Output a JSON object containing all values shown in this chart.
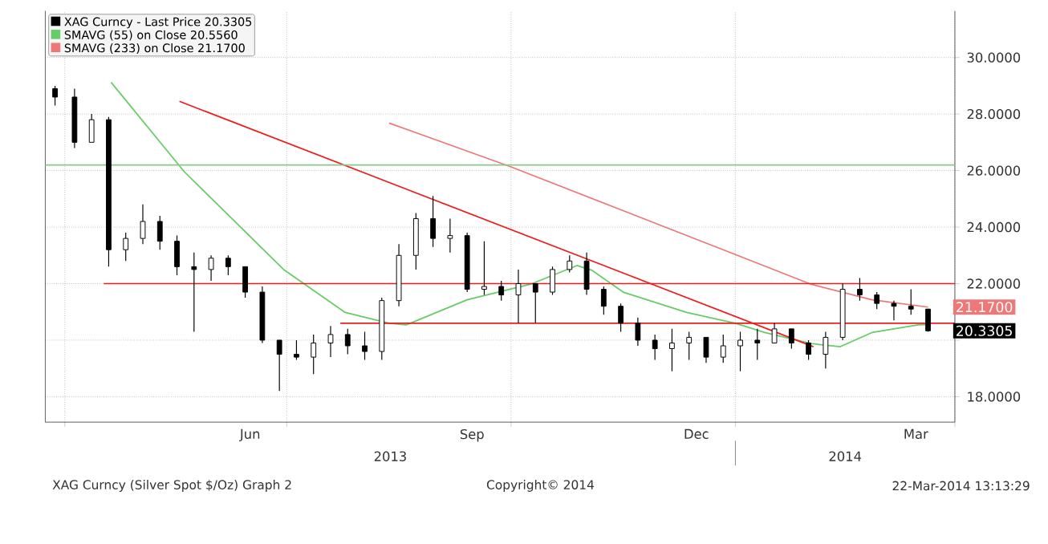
{
  "chart_data": {
    "type": "candlestick",
    "xlim": [
      "2013-03-24",
      "2014-04-01"
    ],
    "ylim": [
      17.1,
      31.65
    ],
    "xticks": [
      {
        "value": "2013-04-01",
        "label": null
      },
      {
        "value": "2013-06-16",
        "label": "Jun"
      },
      {
        "value": "2013-07-01",
        "label": null
      },
      {
        "value": "2013-09-15",
        "label": "Sep"
      },
      {
        "value": "2013-10-01",
        "label": null
      },
      {
        "value": "2013-12-16",
        "label": "Dec"
      },
      {
        "value": "2014-01-01",
        "label": null
      },
      {
        "value": "2014-03-16",
        "label": "Mar"
      },
      {
        "value": "2014-04-01",
        "label": null
      }
    ],
    "yticks": [
      {
        "value": 18,
        "label": "18.0000"
      },
      {
        "value": 20,
        "label": null
      },
      {
        "value": 22,
        "label": "22.0000"
      },
      {
        "value": 24,
        "label": "24.0000"
      },
      {
        "value": 26,
        "label": "26.0000"
      },
      {
        "value": 28,
        "label": "28.0000"
      },
      {
        "value": 30,
        "label": "30.0000"
      }
    ],
    "grid": true,
    "legend": "top left",
    "series": [
      {
        "name": "XAG Curncy - Last Price 20.3305",
        "type": "candlestick",
        "color": "#000000",
        "x": [
          "2013-03-28",
          "2013-04-05",
          "2013-04-12",
          "2013-04-19",
          "2013-04-26",
          "2013-05-03",
          "2013-05-10",
          "2013-05-17",
          "2013-05-24",
          "2013-05-31",
          "2013-06-07",
          "2013-06-14",
          "2013-06-21",
          "2013-06-28",
          "2013-07-05",
          "2013-07-12",
          "2013-07-19",
          "2013-07-26",
          "2013-08-02",
          "2013-08-09",
          "2013-08-16",
          "2013-08-23",
          "2013-08-30",
          "2013-09-06",
          "2013-09-13",
          "2013-09-20",
          "2013-09-27",
          "2013-10-04",
          "2013-10-11",
          "2013-10-18",
          "2013-10-25",
          "2013-11-01",
          "2013-11-08",
          "2013-11-15",
          "2013-11-22",
          "2013-11-29",
          "2013-12-06",
          "2013-12-13",
          "2013-12-20",
          "2013-12-27",
          "2014-01-03",
          "2014-01-10",
          "2014-01-17",
          "2014-01-24",
          "2014-01-31",
          "2014-02-07",
          "2014-02-14",
          "2014-02-21",
          "2014-02-28",
          "2014-03-07",
          "2014-03-14",
          "2014-03-21"
        ],
        "ohlc": [
          [
            28.9,
            29.0,
            28.3,
            28.6
          ],
          [
            28.6,
            28.9,
            26.8,
            27.0
          ],
          [
            27.0,
            28.0,
            27.0,
            27.8
          ],
          [
            27.8,
            27.9,
            22.6,
            23.2
          ],
          [
            23.2,
            23.8,
            22.8,
            23.6
          ],
          [
            23.6,
            24.8,
            23.4,
            24.2
          ],
          [
            24.2,
            24.4,
            23.2,
            23.5
          ],
          [
            23.5,
            23.7,
            22.3,
            22.6
          ],
          [
            22.6,
            23.1,
            20.3,
            22.5
          ],
          [
            22.5,
            23.0,
            22.1,
            22.9
          ],
          [
            22.9,
            23.0,
            22.3,
            22.6
          ],
          [
            22.6,
            22.6,
            21.5,
            21.7
          ],
          [
            21.7,
            21.9,
            19.9,
            20.0
          ],
          [
            20.0,
            20.0,
            18.2,
            19.5
          ],
          [
            19.5,
            20.0,
            19.3,
            19.4
          ],
          [
            19.4,
            20.2,
            18.8,
            19.9
          ],
          [
            19.9,
            20.5,
            19.4,
            20.2
          ],
          [
            20.2,
            20.4,
            19.5,
            19.8
          ],
          [
            19.8,
            20.3,
            19.3,
            19.6
          ],
          [
            19.6,
            21.5,
            19.3,
            21.4
          ],
          [
            21.4,
            23.4,
            21.2,
            23.0
          ],
          [
            23.0,
            24.5,
            22.5,
            24.3
          ],
          [
            24.3,
            25.1,
            23.3,
            23.6
          ],
          [
            23.6,
            24.3,
            23.1,
            23.7
          ],
          [
            23.7,
            23.8,
            21.7,
            21.8
          ],
          [
            21.8,
            23.5,
            21.6,
            21.9
          ],
          [
            21.9,
            22.1,
            21.4,
            21.6
          ],
          [
            21.6,
            22.5,
            20.6,
            22.0
          ],
          [
            22.0,
            22.0,
            20.6,
            21.7
          ],
          [
            21.7,
            22.6,
            21.6,
            22.5
          ],
          [
            22.5,
            23.0,
            22.4,
            22.8
          ],
          [
            22.8,
            23.1,
            21.6,
            21.8
          ],
          [
            21.8,
            21.9,
            20.9,
            21.2
          ],
          [
            21.2,
            21.3,
            20.3,
            20.6
          ],
          [
            20.6,
            20.8,
            19.8,
            20.0
          ],
          [
            20.0,
            20.2,
            19.3,
            19.7
          ],
          [
            19.7,
            20.4,
            18.9,
            19.9
          ],
          [
            19.9,
            20.3,
            19.3,
            20.1
          ],
          [
            20.1,
            20.1,
            19.2,
            19.4
          ],
          [
            19.4,
            20.2,
            19.2,
            19.8
          ],
          [
            19.8,
            20.3,
            18.9,
            20.0
          ],
          [
            20.0,
            20.4,
            19.3,
            19.9
          ],
          [
            19.9,
            20.6,
            19.9,
            20.4
          ],
          [
            20.4,
            20.4,
            19.7,
            19.9
          ],
          [
            19.9,
            20.0,
            19.3,
            19.5
          ],
          [
            19.5,
            20.3,
            19.0,
            20.1
          ],
          [
            20.1,
            22.0,
            20.0,
            21.8
          ],
          [
            21.8,
            22.2,
            21.4,
            21.6
          ],
          [
            21.6,
            21.7,
            21.1,
            21.3
          ],
          [
            21.3,
            21.4,
            20.7,
            21.2
          ],
          [
            21.2,
            21.8,
            20.9,
            21.1
          ],
          [
            21.1,
            21.1,
            20.3,
            20.3305
          ]
        ]
      },
      {
        "name": "SMAVG (55) on Close 20.5560",
        "type": "line",
        "color": "#66cc66",
        "x": [
          "2013-04-20",
          "2013-05-20",
          "2013-06-30",
          "2013-07-25",
          "2013-08-12",
          "2013-08-19",
          "2013-09-13",
          "2013-10-09",
          "2013-10-28",
          "2013-11-03",
          "2013-11-16",
          "2013-12-12",
          "2014-01-01",
          "2014-01-13",
          "2014-02-01",
          "2014-02-13",
          "2014-02-26",
          "2014-03-17",
          "2014-03-21"
        ],
        "values": [
          29.12,
          25.96,
          22.48,
          20.98,
          20.6,
          20.54,
          21.43,
          21.98,
          22.64,
          22.48,
          21.7,
          20.98,
          20.6,
          20.27,
          19.88,
          19.77,
          20.27,
          20.54,
          20.556
        ]
      },
      {
        "name": "SMAVG (233) on Close 21.1700",
        "type": "line",
        "color": "#ee7777",
        "x": [
          "2013-08-12",
          "2013-10-01",
          "2014-01-01",
          "2014-02-01",
          "2014-02-26",
          "2014-03-21"
        ],
        "values": [
          27.68,
          26.13,
          23.03,
          21.98,
          21.43,
          21.17
        ]
      },
      {
        "type": "line",
        "color": "#ee1c1c",
        "x": [
          "2013-05-18",
          "2014-02-02"
        ],
        "values": [
          28.45,
          19.77
        ]
      },
      {
        "type": "line",
        "color": "#ee1c1c",
        "x": [
          "2013-04-17",
          "2014-04-01"
        ],
        "values": [
          22.0,
          22.0
        ]
      },
      {
        "type": "line",
        "color": "#ee1c1c",
        "x": [
          "2013-07-23",
          "2014-04-01"
        ],
        "values": [
          20.6,
          20.6
        ]
      },
      {
        "type": "line",
        "color": "#88c888",
        "x": [
          "2013-03-24",
          "2014-04-01"
        ],
        "values": [
          26.2,
          26.2
        ]
      }
    ],
    "annotations": [
      {
        "text": "21.1700",
        "x": "2014-03-21",
        "y": 21.17
      },
      {
        "text": "20.3305",
        "x": "2014-03-21",
        "y": 20.3305
      },
      "2013",
      "2014",
      "XAG Curncy (Silver Spot  $/Oz) Graph 2",
      "Copyright© 2014",
      "22-Mar-2014 13:13:29"
    ]
  }
}
